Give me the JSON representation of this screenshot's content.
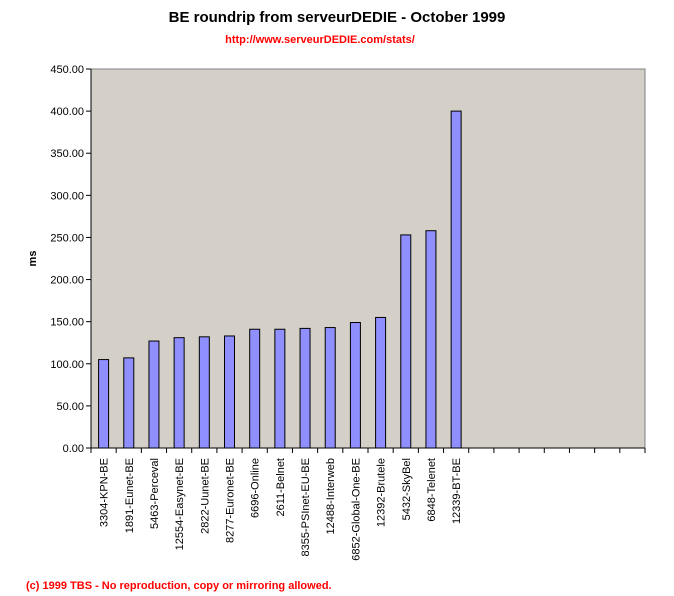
{
  "title": "BE roundrip from serveurDEDIE - October 1999",
  "subtitle": "http://www.serveurDEDIE.com/stats/",
  "footer": "(c) 1999 TBS - No reproduction, copy or mirroring allowed.",
  "colors": {
    "plot_bg": "#d4d0c8",
    "bar": "#8f8fff",
    "bar_edge": "#000000",
    "accent": "#ff0000"
  },
  "chart_data": {
    "type": "bar",
    "title": "BE roundrip from serveurDEDIE - October 1999",
    "xlabel": "",
    "ylabel": "ms",
    "ylim": [
      0,
      450
    ],
    "yticks": [
      "0.00",
      "50.00",
      "100.00",
      "150.00",
      "200.00",
      "250.00",
      "300.00",
      "350.00",
      "400.00",
      "450.00"
    ],
    "slots": 22,
    "categories": [
      "3304-KPN-BE",
      "1891-Eunet-BE",
      "5463-Perceval",
      "12554-Easynet-BE",
      "2822-Uunet-BE",
      "8277-Euronet-BE",
      "6696-Online",
      "2611-Belnet",
      "8355-PSInet-EU-BE",
      "12488-Interweb",
      "6852-Global-One-BE",
      "12392-Brutele",
      "5432-SkyBel",
      "6848-Telenet",
      "12339-BT-BE"
    ],
    "values": [
      105,
      107,
      127,
      131,
      132,
      133,
      141,
      141,
      142,
      143,
      149,
      155,
      253,
      258,
      400
    ],
    "grid": false
  }
}
